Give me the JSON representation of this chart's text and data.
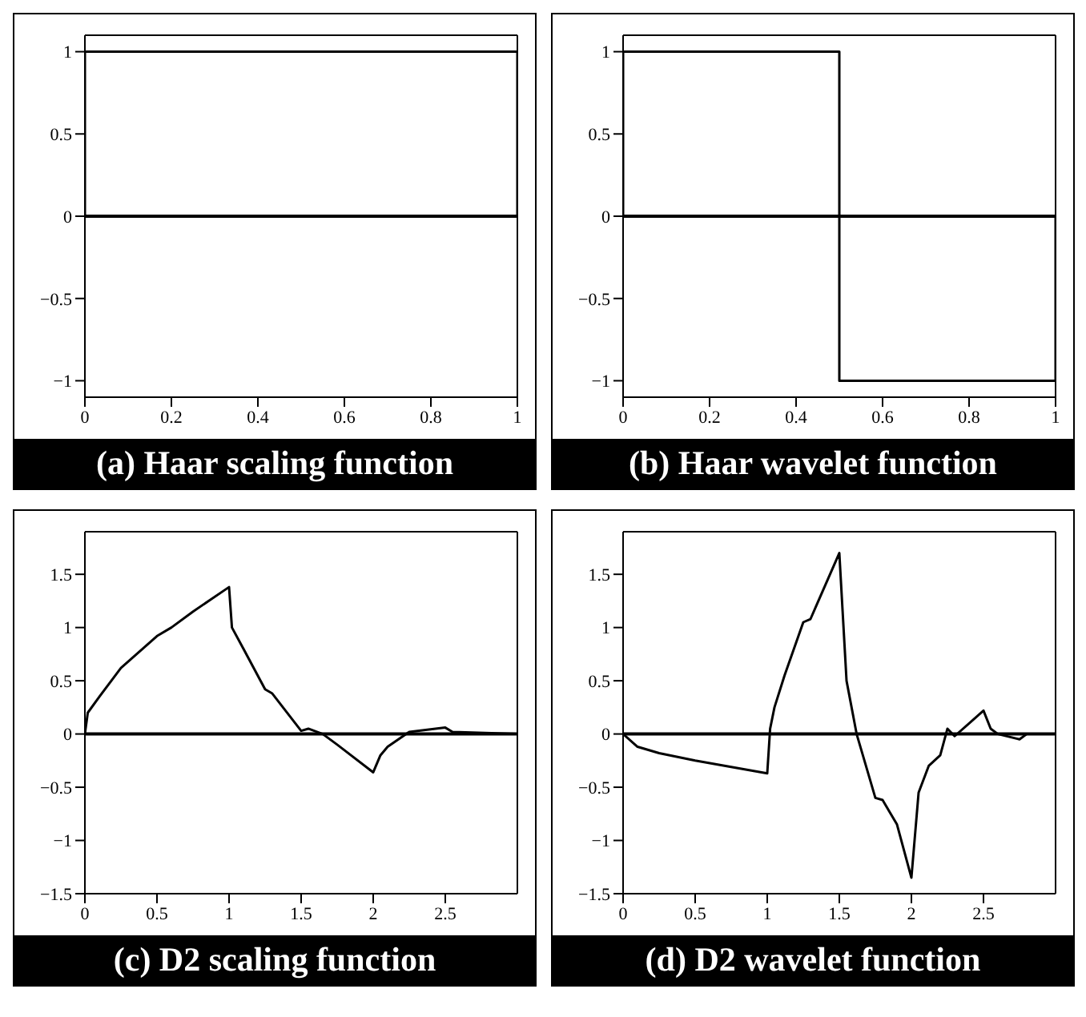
{
  "chart_data": [
    {
      "type": "line",
      "title": "(a) Haar scaling function",
      "x": [
        0,
        0,
        1,
        1
      ],
      "series": [
        {
          "color": "#000000",
          "values": [
            0,
            1,
            1,
            0
          ]
        }
      ],
      "xlim": [
        0,
        1
      ],
      "xticks": [
        0,
        0.2,
        0.4,
        0.6,
        0.8,
        1
      ],
      "ylim": [
        -1.1,
        1.1
      ],
      "yticks": [
        -1,
        -0.5,
        0,
        0.5,
        1
      ],
      "ref_lines": [
        {
          "axis": "y",
          "value": 0,
          "color": "#000000"
        }
      ],
      "grid": false,
      "marker": "none",
      "line_style": "solid"
    },
    {
      "type": "line",
      "title": "(b) Haar wavelet function",
      "x": [
        0,
        0,
        0.5,
        0.5,
        1,
        1
      ],
      "series": [
        {
          "color": "#000000",
          "values": [
            0,
            1,
            1,
            -1,
            -1,
            0
          ]
        }
      ],
      "xlim": [
        0,
        1
      ],
      "xticks": [
        0,
        0.2,
        0.4,
        0.6,
        0.8,
        1
      ],
      "ylim": [
        -1.1,
        1.1
      ],
      "yticks": [
        -1,
        -0.5,
        0,
        0.5,
        1
      ],
      "ref_lines": [
        {
          "axis": "y",
          "value": 0,
          "color": "#000000"
        }
      ],
      "grid": false,
      "marker": "none",
      "line_style": "solid"
    },
    {
      "type": "line",
      "title": "(c) D2 scaling function",
      "x": [
        0,
        0.02,
        0.1,
        0.25,
        0.5,
        0.6,
        0.75,
        1,
        1.02,
        1.1,
        1.25,
        1.3,
        1.5,
        1.55,
        1.65,
        1.75,
        2,
        2.05,
        2.1,
        2.25,
        2.5,
        2.55,
        3
      ],
      "series": [
        {
          "color": "#000000",
          "values": [
            0,
            0.2,
            0.35,
            0.62,
            0.92,
            1.0,
            1.15,
            1.38,
            1.0,
            0.8,
            0.42,
            0.38,
            0.03,
            0.05,
            0,
            -0.1,
            -0.36,
            -0.2,
            -0.12,
            0.02,
            0.06,
            0.02,
            0
          ]
        }
      ],
      "xlim": [
        0,
        3
      ],
      "xticks": [
        0,
        0.5,
        1,
        1.5,
        2,
        2.5
      ],
      "ylim": [
        -1.5,
        1.9
      ],
      "yticks": [
        -1.5,
        -1,
        -0.5,
        0,
        0.5,
        1,
        1.5
      ],
      "ref_lines": [
        {
          "axis": "y",
          "value": 0,
          "color": "#000000"
        }
      ],
      "grid": false,
      "marker": "none",
      "line_style": "solid"
    },
    {
      "type": "line",
      "title": "(d) D2 wavelet function",
      "x": [
        0,
        0.1,
        0.25,
        0.5,
        1,
        1.02,
        1.05,
        1.12,
        1.25,
        1.3,
        1.5,
        1.55,
        1.62,
        1.75,
        1.8,
        1.9,
        2,
        2.05,
        2.12,
        2.2,
        2.25,
        2.3,
        2.4,
        2.5,
        2.55,
        2.6,
        2.75,
        2.8,
        3
      ],
      "series": [
        {
          "color": "#000000",
          "values": [
            0,
            -0.12,
            -0.18,
            -0.25,
            -0.37,
            0.05,
            0.25,
            0.55,
            1.05,
            1.08,
            1.7,
            0.5,
            0,
            -0.6,
            -0.62,
            -0.85,
            -1.35,
            -0.55,
            -0.3,
            -0.2,
            0.05,
            -0.02,
            0.1,
            0.22,
            0.05,
            0,
            -0.05,
            0,
            0
          ]
        }
      ],
      "xlim": [
        0,
        3
      ],
      "xticks": [
        0,
        0.5,
        1,
        1.5,
        2,
        2.5
      ],
      "ylim": [
        -1.5,
        1.9
      ],
      "yticks": [
        -1.5,
        -1,
        -0.5,
        0,
        0.5,
        1,
        1.5
      ],
      "ref_lines": [
        {
          "axis": "y",
          "value": 0,
          "color": "#000000"
        }
      ],
      "grid": false,
      "marker": "none",
      "line_style": "solid"
    }
  ]
}
